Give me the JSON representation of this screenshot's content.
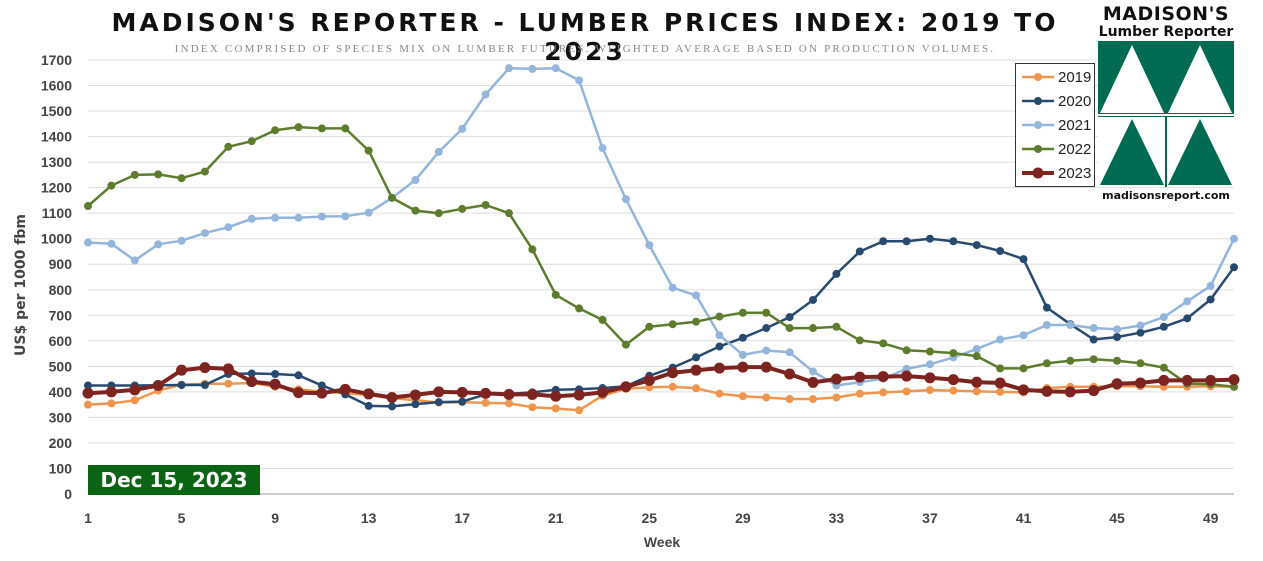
{
  "header": {
    "title": "MADISON'S REPORTER - LUMBER PRICES INDEX: 2019 TO 2023",
    "subtitle": "INDEX COMPRISED OF SPECIES MIX ON LUMBER FUTURES. WEIGHTED AVERAGE BASED ON PRODUCTION VOLUMES."
  },
  "logo": {
    "brand_line1": "MADISON'S",
    "brand_line2": "Lumber Reporter",
    "url": "madisonsreport.com",
    "color": "#006b52"
  },
  "badge": {
    "date": "Dec 15, 2023",
    "color": "#0b6414"
  },
  "chart_data": {
    "type": "line",
    "xlabel": "Week",
    "ylabel": "US$ per 1000 fbm",
    "xlim": [
      1,
      50
    ],
    "ylim": [
      0,
      1700
    ],
    "yticks": [
      0,
      100,
      200,
      300,
      400,
      500,
      600,
      700,
      800,
      900,
      1000,
      1100,
      1200,
      1300,
      1400,
      1500,
      1600,
      1700
    ],
    "xticks": [
      1,
      5,
      9,
      13,
      17,
      21,
      25,
      29,
      33,
      37,
      41,
      45,
      49
    ],
    "grid": true,
    "legend_position": "top-right",
    "series": [
      {
        "name": "2019",
        "color": "#f0954e",
        "values": [
          350,
          355,
          367,
          405,
          428,
          432,
          432,
          435,
          420,
          410,
          400,
          395,
          388,
          375,
          368,
          358,
          360,
          357,
          355,
          340,
          335,
          328,
          385,
          412,
          418,
          420,
          414,
          393,
          383,
          378,
          372,
          372,
          378,
          393,
          398,
          402,
          407,
          405,
          402,
          400,
          398,
          415,
          420,
          420,
          422,
          422,
          420,
          420,
          422,
          420
        ]
      },
      {
        "name": "2020",
        "color": "#284a6e",
        "values": [
          425,
          425,
          425,
          426,
          427,
          427,
          470,
          472,
          470,
          465,
          425,
          390,
          345,
          343,
          352,
          360,
          362,
          390,
          392,
          398,
          408,
          410,
          415,
          422,
          463,
          495,
          535,
          578,
          612,
          650,
          693,
          760,
          862,
          950,
          990,
          990,
          1000,
          990,
          975,
          952,
          920,
          730,
          665,
          605,
          615,
          632,
          655,
          688,
          762,
          888
        ]
      },
      {
        "name": "2021",
        "color": "#94b6dc",
        "values": [
          985,
          980,
          915,
          978,
          992,
          1022,
          1045,
          1078,
          1082,
          1082,
          1087,
          1088,
          1102,
          1160,
          1230,
          1340,
          1430,
          1565,
          1668,
          1665,
          1668,
          1620,
          1355,
          1155,
          975,
          808,
          778,
          622,
          545,
          562,
          555,
          480,
          425,
          438,
          452,
          490,
          508,
          535,
          568,
          605,
          622,
          662,
          662,
          650,
          645,
          660,
          693,
          755,
          815,
          1000
        ]
      },
      {
        "name": "2022",
        "color": "#5e7c2e",
        "values": [
          1128,
          1208,
          1250,
          1252,
          1237,
          1263,
          1360,
          1382,
          1425,
          1437,
          1432,
          1432,
          1345,
          1160,
          1110,
          1100,
          1117,
          1132,
          1100,
          958,
          780,
          727,
          682,
          585,
          655,
          665,
          675,
          695,
          710,
          710,
          650,
          650,
          655,
          602,
          590,
          563,
          558,
          552,
          540,
          492,
          492,
          512,
          522,
          528,
          522,
          512,
          495,
          432,
          430,
          420
        ]
      },
      {
        "name": "2023",
        "color": "#7d2420",
        "values": [
          395,
          400,
          408,
          425,
          485,
          495,
          490,
          440,
          430,
          397,
          395,
          410,
          392,
          378,
          388,
          400,
          398,
          394,
          390,
          390,
          383,
          388,
          398,
          420,
          445,
          475,
          485,
          493,
          497,
          497,
          470,
          437,
          450,
          458,
          460,
          462,
          455,
          448,
          438,
          435,
          408,
          402,
          400,
          405,
          432,
          435,
          445,
          445,
          445,
          448
        ]
      }
    ]
  }
}
